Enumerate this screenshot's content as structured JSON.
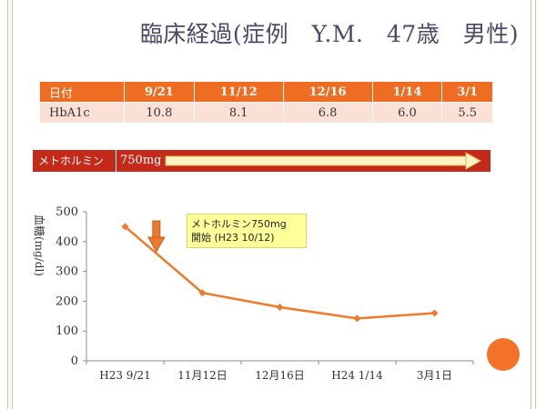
{
  "slide": {
    "title": "臨床経過(症例　Y.M.　47歳　男性)"
  },
  "table": {
    "header_label": "日付",
    "dates": [
      "9/21",
      "11/12",
      "12/16",
      "1/14",
      "3/1"
    ],
    "row_label": "HbA1c",
    "values": [
      "10.8",
      "8.1",
      "6.8",
      "6.0",
      "5.5"
    ]
  },
  "drug": {
    "name": "メトホルミン",
    "dose": "750mg"
  },
  "callout": {
    "line1": "メトホルミン750mg",
    "line2": "開始 (H23 10/12)"
  },
  "colors": {
    "accent": "#ef6d22",
    "table_row": "#fbe0d6",
    "drug_bar": "#c42a1a",
    "line": "#ef7a2a",
    "callout_bg": "#ffff99"
  },
  "chart_data": {
    "type": "line",
    "title": "",
    "xlabel": "",
    "ylabel": "血糖(mg/dl)",
    "categories": [
      "H23 9/21",
      "11月12日",
      "12月16日",
      "H24 1/14",
      "3月1日"
    ],
    "x_dates": [
      "2011-09-21",
      "2011-11-12",
      "2011-12-16",
      "2012-01-14",
      "2012-03-01"
    ],
    "values": [
      450,
      228,
      180,
      142,
      160
    ],
    "ylim": [
      0,
      500
    ],
    "yticks": [
      0,
      100,
      200,
      300,
      400,
      500
    ],
    "grid": false,
    "annotation_date": "2011-10-12"
  }
}
